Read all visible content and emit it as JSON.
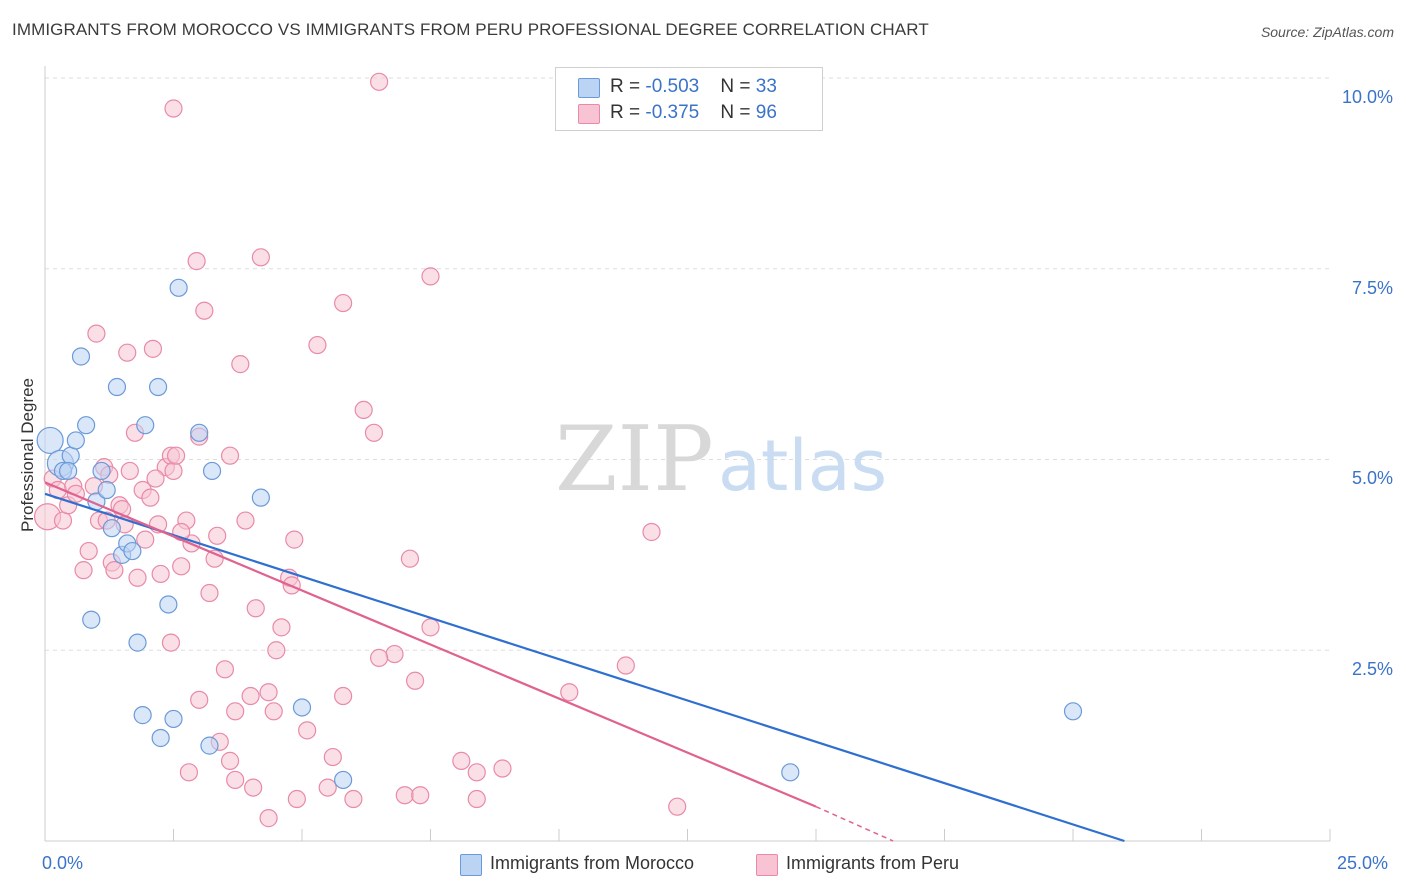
{
  "header": {
    "title": "IMMIGRANTS FROM MOROCCO VS IMMIGRANTS FROM PERU PROFESSIONAL DEGREE CORRELATION CHART",
    "source": "Source: ZipAtlas.com"
  },
  "watermark": {
    "zip": "ZIP",
    "atlas": "atlas"
  },
  "legend": {
    "morocco": {
      "r_label": "R = ",
      "r_value": "-0.503",
      "n_label": "N = ",
      "n_value": "33"
    },
    "peru": {
      "r_label": "R = ",
      "r_value": "-0.375",
      "n_label": "N = ",
      "n_value": "96"
    }
  },
  "colors": {
    "morocco_fill": "#bcd4f4",
    "morocco_stroke": "#6b9ad8",
    "morocco_line": "#2f6fd0",
    "peru_fill": "#f8c4d4",
    "peru_stroke": "#e88aa8",
    "peru_line": "#e0628e",
    "tick_text": "#3a73c8",
    "grid": "#dddddd"
  },
  "chart_data": {
    "type": "scatter",
    "title": "IMMIGRANTS FROM MOROCCO VS IMMIGRANTS FROM PERU PROFESSIONAL DEGREE CORRELATION CHART",
    "xlabel": "",
    "ylabel": "Professional Degree",
    "xlim": [
      0,
      25
    ],
    "ylim": [
      0,
      10
    ],
    "x_tick_labels": [
      "0.0%",
      "25.0%"
    ],
    "y_ticks": [
      2.5,
      5.0,
      7.5,
      10.0
    ],
    "y_tick_labels": [
      "2.5%",
      "5.0%",
      "7.5%",
      "10.0%"
    ],
    "grid": true,
    "legend_position": "top-center",
    "series": [
      {
        "name": "Immigrants from Morocco",
        "r": -0.503,
        "n": 33,
        "trend": {
          "x": [
            0,
            21
          ],
          "y": [
            4.55,
            0.0
          ]
        },
        "points": [
          {
            "x": 0.1,
            "y": 5.25,
            "big": true
          },
          {
            "x": 0.3,
            "y": 4.95,
            "big": true
          },
          {
            "x": 0.35,
            "y": 4.85
          },
          {
            "x": 0.5,
            "y": 5.05
          },
          {
            "x": 0.45,
            "y": 4.85
          },
          {
            "x": 0.6,
            "y": 5.25
          },
          {
            "x": 0.7,
            "y": 6.35
          },
          {
            "x": 0.8,
            "y": 5.45
          },
          {
            "x": 1.0,
            "y": 4.45
          },
          {
            "x": 1.1,
            "y": 4.85
          },
          {
            "x": 1.2,
            "y": 4.6
          },
          {
            "x": 1.3,
            "y": 4.1
          },
          {
            "x": 1.4,
            "y": 5.95
          },
          {
            "x": 1.5,
            "y": 3.75
          },
          {
            "x": 1.6,
            "y": 3.9
          },
          {
            "x": 1.7,
            "y": 3.8
          },
          {
            "x": 1.95,
            "y": 5.45
          },
          {
            "x": 2.2,
            "y": 5.95
          },
          {
            "x": 2.4,
            "y": 3.1
          },
          {
            "x": 2.6,
            "y": 7.25
          },
          {
            "x": 3.0,
            "y": 5.35
          },
          {
            "x": 3.25,
            "y": 4.85
          },
          {
            "x": 4.2,
            "y": 4.5
          },
          {
            "x": 0.9,
            "y": 2.9
          },
          {
            "x": 1.8,
            "y": 2.6
          },
          {
            "x": 1.9,
            "y": 1.65
          },
          {
            "x": 2.25,
            "y": 1.35
          },
          {
            "x": 2.5,
            "y": 1.6
          },
          {
            "x": 3.2,
            "y": 1.25
          },
          {
            "x": 5.0,
            "y": 1.75
          },
          {
            "x": 5.8,
            "y": 0.8
          },
          {
            "x": 14.5,
            "y": 0.9
          },
          {
            "x": 20.0,
            "y": 1.7
          }
        ]
      },
      {
        "name": "Immigrants from Peru",
        "r": -0.375,
        "n": 96,
        "trend": {
          "x": [
            0,
            15
          ],
          "y": [
            4.7,
            0.45
          ]
        },
        "trend_dashed": {
          "x": [
            15,
            16.5
          ],
          "y": [
            0.45,
            0.0
          ]
        },
        "points": [
          {
            "x": 0.05,
            "y": 4.25,
            "big": true
          },
          {
            "x": 0.15,
            "y": 4.75
          },
          {
            "x": 0.25,
            "y": 4.6
          },
          {
            "x": 0.35,
            "y": 4.2
          },
          {
            "x": 0.45,
            "y": 4.4
          },
          {
            "x": 0.55,
            "y": 4.65
          },
          {
            "x": 0.6,
            "y": 4.55
          },
          {
            "x": 0.75,
            "y": 3.55
          },
          {
            "x": 0.85,
            "y": 3.8
          },
          {
            "x": 1.0,
            "y": 6.65
          },
          {
            "x": 1.05,
            "y": 4.2
          },
          {
            "x": 1.15,
            "y": 4.9
          },
          {
            "x": 1.2,
            "y": 4.2
          },
          {
            "x": 1.3,
            "y": 3.65
          },
          {
            "x": 1.35,
            "y": 3.55
          },
          {
            "x": 1.45,
            "y": 4.4
          },
          {
            "x": 1.5,
            "y": 4.35
          },
          {
            "x": 1.55,
            "y": 4.15
          },
          {
            "x": 1.6,
            "y": 6.4
          },
          {
            "x": 1.65,
            "y": 4.85
          },
          {
            "x": 1.75,
            "y": 5.35
          },
          {
            "x": 1.8,
            "y": 3.45
          },
          {
            "x": 1.9,
            "y": 4.6
          },
          {
            "x": 1.95,
            "y": 3.95
          },
          {
            "x": 2.05,
            "y": 4.5
          },
          {
            "x": 2.1,
            "y": 6.45
          },
          {
            "x": 2.2,
            "y": 4.15
          },
          {
            "x": 2.25,
            "y": 3.5
          },
          {
            "x": 2.35,
            "y": 4.9
          },
          {
            "x": 2.45,
            "y": 5.05
          },
          {
            "x": 2.5,
            "y": 4.85
          },
          {
            "x": 2.55,
            "y": 5.05
          },
          {
            "x": 2.65,
            "y": 3.6
          },
          {
            "x": 2.75,
            "y": 4.2
          },
          {
            "x": 2.85,
            "y": 3.9
          },
          {
            "x": 2.95,
            "y": 7.6
          },
          {
            "x": 3.0,
            "y": 5.3
          },
          {
            "x": 3.1,
            "y": 6.95
          },
          {
            "x": 3.2,
            "y": 3.25
          },
          {
            "x": 3.3,
            "y": 3.7
          },
          {
            "x": 3.35,
            "y": 4.0
          },
          {
            "x": 3.5,
            "y": 2.25
          },
          {
            "x": 3.6,
            "y": 5.05
          },
          {
            "x": 3.8,
            "y": 6.25
          },
          {
            "x": 3.9,
            "y": 4.2
          },
          {
            "x": 4.1,
            "y": 3.05
          },
          {
            "x": 4.2,
            "y": 7.65
          },
          {
            "x": 4.5,
            "y": 2.5
          },
          {
            "x": 4.6,
            "y": 2.8
          },
          {
            "x": 4.75,
            "y": 3.45
          },
          {
            "x": 4.8,
            "y": 3.35
          },
          {
            "x": 4.85,
            "y": 3.95
          },
          {
            "x": 5.3,
            "y": 6.5
          },
          {
            "x": 5.8,
            "y": 7.05
          },
          {
            "x": 6.2,
            "y": 5.65
          },
          {
            "x": 6.8,
            "y": 2.45
          },
          {
            "x": 6.5,
            "y": 2.4
          },
          {
            "x": 6.5,
            "y": 9.95
          },
          {
            "x": 6.4,
            "y": 5.35
          },
          {
            "x": 7.1,
            "y": 3.7
          },
          {
            "x": 7.2,
            "y": 2.1
          },
          {
            "x": 7.5,
            "y": 2.8
          },
          {
            "x": 7.5,
            "y": 7.4
          },
          {
            "x": 2.5,
            "y": 9.6
          },
          {
            "x": 11.8,
            "y": 4.05
          },
          {
            "x": 10.2,
            "y": 1.95
          },
          {
            "x": 11.3,
            "y": 2.3
          },
          {
            "x": 2.45,
            "y": 2.6
          },
          {
            "x": 3.0,
            "y": 1.85
          },
          {
            "x": 3.7,
            "y": 1.7
          },
          {
            "x": 4.0,
            "y": 1.9
          },
          {
            "x": 4.35,
            "y": 1.95
          },
          {
            "x": 4.45,
            "y": 1.7
          },
          {
            "x": 5.1,
            "y": 1.45
          },
          {
            "x": 5.8,
            "y": 1.9
          },
          {
            "x": 2.8,
            "y": 0.9
          },
          {
            "x": 3.4,
            "y": 1.3
          },
          {
            "x": 3.6,
            "y": 1.05
          },
          {
            "x": 3.7,
            "y": 0.8
          },
          {
            "x": 4.05,
            "y": 0.7
          },
          {
            "x": 4.35,
            "y": 0.3
          },
          {
            "x": 4.9,
            "y": 0.55
          },
          {
            "x": 5.5,
            "y": 0.7
          },
          {
            "x": 5.6,
            "y": 1.1
          },
          {
            "x": 6.0,
            "y": 0.55
          },
          {
            "x": 7.0,
            "y": 0.6
          },
          {
            "x": 8.1,
            "y": 1.05
          },
          {
            "x": 8.4,
            "y": 0.9
          },
          {
            "x": 8.4,
            "y": 0.55
          },
          {
            "x": 8.9,
            "y": 0.95
          },
          {
            "x": 12.3,
            "y": 0.45
          },
          {
            "x": 7.3,
            "y": 0.6
          },
          {
            "x": 2.15,
            "y": 4.75
          },
          {
            "x": 0.95,
            "y": 4.65
          },
          {
            "x": 1.25,
            "y": 4.8
          },
          {
            "x": 2.65,
            "y": 4.05
          }
        ]
      }
    ]
  },
  "bottom_legend": {
    "morocco_label": "Immigrants from Morocco",
    "peru_label": "Immigrants from Peru"
  }
}
